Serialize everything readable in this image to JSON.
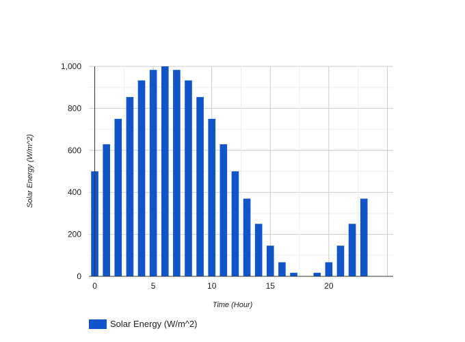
{
  "chart_data": {
    "type": "bar",
    "title": "",
    "xlabel": "Time (Hour)",
    "ylabel": "Solar Energy (W/m^2)",
    "x": [
      0,
      1,
      2,
      3,
      4,
      5,
      6,
      7,
      8,
      9,
      10,
      11,
      12,
      13,
      14,
      15,
      16,
      17,
      18,
      19,
      20,
      21,
      22,
      23
    ],
    "series": [
      {
        "name": "Solar Energy (W/m^2)",
        "color": "#1155cc",
        "values": [
          500,
          629,
          750,
          854,
          933,
          983,
          1000,
          983,
          933,
          854,
          750,
          629,
          500,
          370,
          250,
          146,
          67,
          17,
          0,
          17,
          67,
          146,
          250,
          370
        ]
      }
    ],
    "xlim": [
      -0.5,
      25.5
    ],
    "ylim": [
      0,
      1000
    ],
    "x_ticks": [
      0,
      5,
      10,
      15,
      20
    ],
    "x_tick_labels": [
      "0",
      "5",
      "10",
      "15",
      "20"
    ],
    "y_ticks": [
      0,
      200,
      400,
      600,
      800,
      1000
    ],
    "y_tick_labels": [
      "0",
      "200",
      "400",
      "600",
      "800",
      "1,000"
    ],
    "grid": true,
    "legend_position": "bottom-left"
  }
}
